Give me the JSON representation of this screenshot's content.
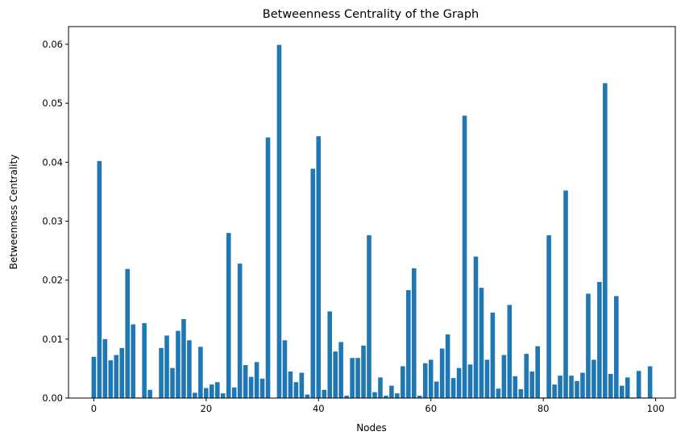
{
  "chart_data": {
    "type": "bar",
    "title": "Betweenness Centrality of the Graph",
    "xlabel": "Nodes",
    "ylabel": "Betweenness Centrality",
    "bar_color": "#1f77b4",
    "xlim": [
      -4.5,
      103.5
    ],
    "ylim": [
      0,
      0.063
    ],
    "xticks": [
      0,
      20,
      40,
      60,
      80,
      100
    ],
    "xtick_labels": [
      "0",
      "20",
      "40",
      "60",
      "80",
      "100"
    ],
    "yticks": [
      0.0,
      0.01,
      0.02,
      0.03,
      0.04,
      0.05,
      0.06
    ],
    "ytick_labels": [
      "0.00",
      "0.01",
      "0.02",
      "0.03",
      "0.04",
      "0.05",
      "0.06"
    ],
    "grid": false,
    "x": [
      0,
      1,
      2,
      3,
      4,
      5,
      6,
      7,
      8,
      9,
      10,
      11,
      12,
      13,
      14,
      15,
      16,
      17,
      18,
      19,
      20,
      21,
      22,
      23,
      24,
      25,
      26,
      27,
      28,
      29,
      30,
      31,
      32,
      33,
      34,
      35,
      36,
      37,
      38,
      39,
      40,
      41,
      42,
      43,
      44,
      45,
      46,
      47,
      48,
      49,
      50,
      51,
      52,
      53,
      54,
      55,
      56,
      57,
      58,
      59,
      60,
      61,
      62,
      63,
      64,
      65,
      66,
      67,
      68,
      69,
      70,
      71,
      72,
      73,
      74,
      75,
      76,
      77,
      78,
      79,
      80,
      81,
      82,
      83,
      84,
      85,
      86,
      87,
      88,
      89,
      90,
      91,
      92,
      93,
      94,
      95,
      96,
      97,
      98,
      99
    ],
    "values": [
      0.007,
      0.0402,
      0.01,
      0.0064,
      0.0073,
      0.0085,
      0.0219,
      0.0125,
      0.0001,
      0.0127,
      0.0014,
      0.0,
      0.0085,
      0.0106,
      0.0051,
      0.0114,
      0.0134,
      0.0098,
      0.0009,
      0.0087,
      0.0017,
      0.0023,
      0.0027,
      0.0008,
      0.028,
      0.0018,
      0.0228,
      0.0056,
      0.0036,
      0.0061,
      0.0033,
      0.0442,
      0.0,
      0.0599,
      0.0098,
      0.0045,
      0.0027,
      0.0043,
      0.0006,
      0.0389,
      0.0444,
      0.0014,
      0.0147,
      0.0079,
      0.0095,
      0.0004,
      0.0068,
      0.0068,
      0.0089,
      0.0276,
      0.001,
      0.0035,
      0.0004,
      0.0021,
      0.0008,
      0.0054,
      0.0183,
      0.022,
      0.0004,
      0.0059,
      0.0065,
      0.0028,
      0.0084,
      0.0108,
      0.0034,
      0.0051,
      0.0479,
      0.0057,
      0.024,
      0.0187,
      0.0065,
      0.0145,
      0.0016,
      0.0073,
      0.0158,
      0.0037,
      0.0015,
      0.0075,
      0.0045,
      0.0088,
      0.0001,
      0.0276,
      0.0023,
      0.0038,
      0.0352,
      0.0038,
      0.0029,
      0.0043,
      0.0177,
      0.0065,
      0.0197,
      0.0534,
      0.0041,
      0.0173,
      0.0021,
      0.0035,
      0.0001,
      0.0046,
      0.0001,
      0.0054
    ]
  }
}
